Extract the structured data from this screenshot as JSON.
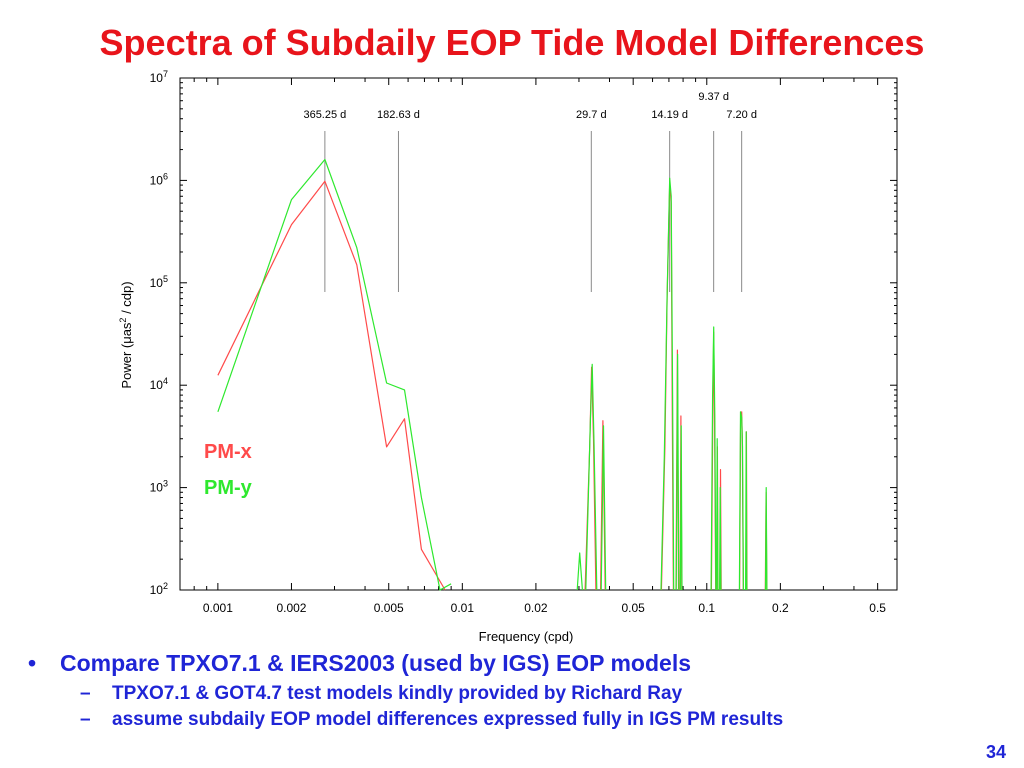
{
  "slide": {
    "title": "Spectra of Subdaily EOP Tide Model Differences",
    "page_number": "34",
    "bullets": [
      {
        "text": "Compare TPXO7.1 & IERS2003 (used by IGS) EOP models",
        "sub": [
          "TPXO7.1 & GOT4.7 test models kindly provided by Richard Ray",
          "assume subdaily EOP model differences expressed fully in IGS PM results"
        ]
      }
    ],
    "bullet_marker": "•",
    "sub_marker": "–"
  },
  "colors": {
    "title": "#e8141b",
    "text": "#1f25d6",
    "pmx": "#ff4a4a",
    "pmy": "#2ee82e"
  },
  "chart_data": {
    "type": "line",
    "xlabel": "Frequency (cpd)",
    "ylabel_parts": [
      "Power (μas",
      "2",
      " / cdp)"
    ],
    "x_scale": "log",
    "y_scale": "log",
    "xlim": [
      0.0007,
      0.6
    ],
    "ylim": [
      100,
      10000000
    ],
    "x_ticks": [
      {
        "v": 0.001,
        "label": "0.001"
      },
      {
        "v": 0.002,
        "label": "0.002"
      },
      {
        "v": 0.005,
        "label": "0.005"
      },
      {
        "v": 0.01,
        "label": "0.01"
      },
      {
        "v": 0.02,
        "label": "0.02"
      },
      {
        "v": 0.05,
        "label": "0.05"
      },
      {
        "v": 0.1,
        "label": "0.1"
      },
      {
        "v": 0.2,
        "label": "0.2"
      },
      {
        "v": 0.5,
        "label": "0.5"
      }
    ],
    "y_ticks": [
      {
        "v": 100,
        "base": "10",
        "exp": "2"
      },
      {
        "v": 1000,
        "base": "10",
        "exp": "3"
      },
      {
        "v": 10000,
        "base": "10",
        "exp": "4"
      },
      {
        "v": 100000,
        "base": "10",
        "exp": "5"
      },
      {
        "v": 1000000,
        "base": "10",
        "exp": "6"
      },
      {
        "v": 10000000,
        "base": "10",
        "exp": "7"
      }
    ],
    "period_markers": [
      {
        "label": "365.25 d",
        "freq": 0.00274,
        "row": 2
      },
      {
        "label": "182.63 d",
        "freq": 0.00548,
        "row": 2
      },
      {
        "label": "29.7 d",
        "freq": 0.0337,
        "row": 2
      },
      {
        "label": "14.19 d",
        "freq": 0.0705,
        "row": 2
      },
      {
        "label": "9.37 d",
        "freq": 0.1067,
        "row": 1
      },
      {
        "label": "7.20 d",
        "freq": 0.1389,
        "row": 2
      }
    ],
    "legend": [
      {
        "name": "PM-x",
        "color": "#ff4a4a"
      },
      {
        "name": "PM-y",
        "color": "#2ee82e"
      }
    ],
    "series": [
      {
        "name": "PM-x",
        "color": "#ff4a4a",
        "segments": [
          [
            [
              0.001,
              12500
            ],
            [
              0.002,
              370000
            ],
            [
              0.00274,
              980000
            ],
            [
              0.0037,
              150000
            ],
            [
              0.0049,
              2500
            ],
            [
              0.0058,
              4700
            ],
            [
              0.0068,
              250
            ],
            [
              0.0085,
              100
            ]
          ],
          [
            [
              0.0318,
              100
            ],
            [
              0.0332,
              2500
            ],
            [
              0.0338,
              15000
            ],
            [
              0.0344,
              3000
            ],
            [
              0.0352,
              100
            ]
          ],
          [
            [
              0.0368,
              100
            ],
            [
              0.0376,
              4500
            ],
            [
              0.0384,
              100
            ]
          ],
          [
            [
              0.0652,
              100
            ],
            [
              0.0674,
              2500
            ],
            [
              0.0688,
              70000
            ],
            [
              0.0705,
              950000
            ],
            [
              0.0715,
              600000
            ],
            [
              0.0723,
              5000
            ],
            [
              0.073,
              100
            ]
          ],
          [
            [
              0.0748,
              100
            ],
            [
              0.0758,
              22000
            ],
            [
              0.0766,
              100
            ]
          ],
          [
            [
              0.0778,
              100
            ],
            [
              0.0784,
              5000
            ],
            [
              0.079,
              100
            ]
          ],
          [
            [
              0.1045,
              100
            ],
            [
              0.1058,
              5000
            ],
            [
              0.1067,
              33000
            ],
            [
              0.1076,
              4000
            ],
            [
              0.1088,
              100
            ]
          ],
          [
            [
              0.1098,
              100
            ],
            [
              0.1105,
              2500
            ],
            [
              0.1112,
              100
            ]
          ],
          [
            [
              0.1132,
              100
            ],
            [
              0.1138,
              1500
            ],
            [
              0.1145,
              100
            ]
          ],
          [
            [
              0.1362,
              100
            ],
            [
              0.1375,
              4500
            ],
            [
              0.1389,
              5500
            ],
            [
              0.1398,
              3000
            ],
            [
              0.141,
              100
            ]
          ],
          [
            [
              0.1445,
              100
            ],
            [
              0.1452,
              3500
            ],
            [
              0.146,
              100
            ]
          ],
          [
            [
              0.1735,
              100
            ],
            [
              0.1748,
              900
            ],
            [
              0.176,
              100
            ]
          ]
        ]
      },
      {
        "name": "PM-y",
        "color": "#2ee82e",
        "segments": [
          [
            [
              0.001,
              5500
            ],
            [
              0.002,
              650000
            ],
            [
              0.00274,
              1600000
            ],
            [
              0.0037,
              220000
            ],
            [
              0.0049,
              10500
            ],
            [
              0.0058,
              9000
            ],
            [
              0.0068,
              800
            ],
            [
              0.0081,
              100
            ],
            [
              0.009,
              115
            ]
          ],
          [
            [
              0.0295,
              100
            ],
            [
              0.0302,
              230
            ],
            [
              0.031,
              100
            ]
          ],
          [
            [
              0.032,
              100
            ],
            [
              0.0334,
              4500
            ],
            [
              0.034,
              16000
            ],
            [
              0.0346,
              2500
            ],
            [
              0.0355,
              100
            ]
          ],
          [
            [
              0.037,
              100
            ],
            [
              0.0378,
              4000
            ],
            [
              0.0386,
              100
            ]
          ],
          [
            [
              0.065,
              100
            ],
            [
              0.067,
              2000
            ],
            [
              0.0688,
              75000
            ],
            [
              0.0705,
              1050000
            ],
            [
              0.0715,
              700000
            ],
            [
              0.0725,
              8000
            ],
            [
              0.0732,
              100
            ]
          ],
          [
            [
              0.075,
              100
            ],
            [
              0.076,
              20000
            ],
            [
              0.0768,
              100
            ]
          ],
          [
            [
              0.078,
              100
            ],
            [
              0.0786,
              4000
            ],
            [
              0.0792,
              100
            ]
          ],
          [
            [
              0.1042,
              100
            ],
            [
              0.1056,
              8000
            ],
            [
              0.1067,
              37000
            ],
            [
              0.1078,
              5000
            ],
            [
              0.109,
              100
            ]
          ],
          [
            [
              0.1096,
              100
            ],
            [
              0.1103,
              3000
            ],
            [
              0.111,
              100
            ]
          ],
          [
            [
              0.1128,
              100
            ],
            [
              0.1135,
              1000
            ],
            [
              0.1142,
              100
            ]
          ],
          [
            [
              0.136,
              100
            ],
            [
              0.1374,
              5500
            ],
            [
              0.1389,
              4800
            ],
            [
              0.14,
              2500
            ],
            [
              0.1412,
              100
            ]
          ],
          [
            [
              0.1442,
              100
            ],
            [
              0.145,
              3500
            ],
            [
              0.1458,
              100
            ]
          ],
          [
            [
              0.1738,
              100
            ],
            [
              0.175,
              1000
            ],
            [
              0.1762,
              100
            ]
          ]
        ]
      }
    ]
  }
}
